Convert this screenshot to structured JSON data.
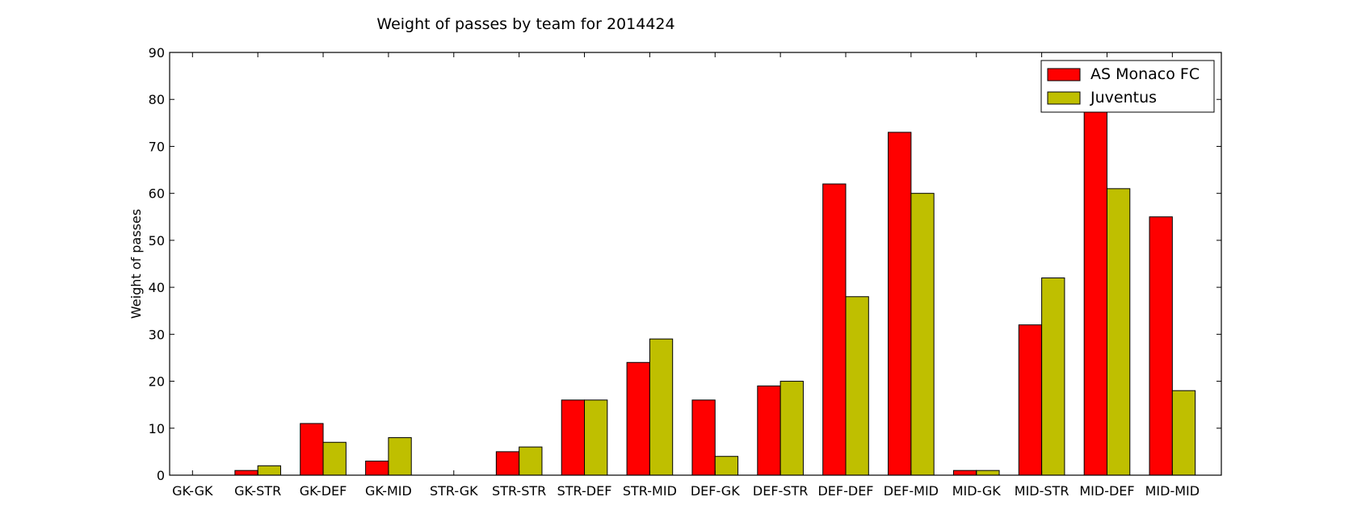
{
  "chart_data": {
    "type": "bar",
    "title": "Weight of passes by team for 2014424",
    "xlabel": "",
    "ylabel": "Weight of passes",
    "ylim": [
      0,
      90
    ],
    "yticks": [
      0,
      10,
      20,
      30,
      40,
      50,
      60,
      70,
      80,
      90
    ],
    "grid": false,
    "legend": "top-right",
    "categories": [
      "GK-GK",
      "GK-STR",
      "GK-DEF",
      "GK-MID",
      "STR-GK",
      "STR-STR",
      "STR-DEF",
      "STR-MID",
      "DEF-GK",
      "DEF-STR",
      "DEF-DEF",
      "DEF-MID",
      "MID-GK",
      "MID-STR",
      "MID-DEF",
      "MID-MID"
    ],
    "series": [
      {
        "name": "AS Monaco FC",
        "color": "#ff0000",
        "values": [
          0,
          1,
          11,
          3,
          0,
          5,
          16,
          24,
          16,
          19,
          62,
          73,
          1,
          32,
          80,
          55
        ]
      },
      {
        "name": "Juventus",
        "color": "#bfbf00",
        "values": [
          0,
          2,
          7,
          8,
          0,
          6,
          16,
          29,
          4,
          20,
          38,
          60,
          1,
          42,
          61,
          18
        ]
      }
    ]
  }
}
